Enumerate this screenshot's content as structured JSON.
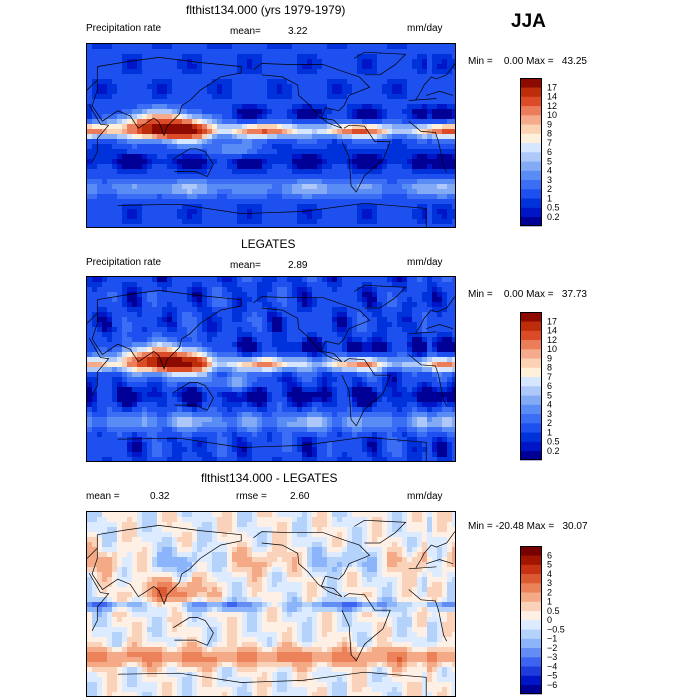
{
  "season": "JJA",
  "units": "mm/day",
  "panels": [
    {
      "title": "flthist134.000 (yrs 1979-1979)",
      "left_label": "Precipitation rate",
      "stat1_label": "mean=",
      "stat1_value": "3.22",
      "stat2_label": "",
      "stat2_value": "",
      "minmax": "Min =    0.00 Max =   43.25"
    },
    {
      "title": "LEGATES",
      "left_label": "Precipitation rate",
      "stat1_label": "mean=",
      "stat1_value": "2.89",
      "stat2_label": "",
      "stat2_value": "",
      "minmax": "Min =    0.00 Max =   37.73"
    },
    {
      "title": "flthist134.000 - LEGATES",
      "left_label": "",
      "stat1_label": "mean =",
      "stat1_value": "0.32",
      "stat2_label": "rmse =",
      "stat2_value": "2.60",
      "minmax": "Min = -20.48 Max =   30.07"
    }
  ],
  "chart_data": [
    {
      "type": "heatmap",
      "title": "flthist134.000 (yrs 1979-1979)",
      "variable": "Precipitation rate",
      "units": "mm/day",
      "mean": 3.22,
      "min": 0.0,
      "max": 43.25,
      "colorbar_levels": [
        "0.2",
        "0.5",
        "1",
        "2",
        "3",
        "4",
        "5",
        "6",
        "7",
        "8",
        "9",
        "10",
        "12",
        "14",
        "17"
      ],
      "colorbar_colors": [
        "#000096",
        "#0014c8",
        "#0032dc",
        "#1e50f0",
        "#3c6ef5",
        "#5a8cf5",
        "#82aaf5",
        "#afc8fa",
        "#d7e6ff",
        "#fff0dc",
        "#fcd2b4",
        "#f5aa8c",
        "#eb7d5a",
        "#dc4b28",
        "#be2d0a",
        "#8c0a00"
      ]
    },
    {
      "type": "heatmap",
      "title": "LEGATES",
      "variable": "Precipitation rate",
      "units": "mm/day",
      "mean": 2.89,
      "min": 0.0,
      "max": 37.73,
      "colorbar_levels": [
        "0.2",
        "0.5",
        "1",
        "2",
        "3",
        "4",
        "5",
        "6",
        "7",
        "8",
        "9",
        "10",
        "12",
        "14",
        "17"
      ],
      "colorbar_colors": [
        "#000096",
        "#0014c8",
        "#0032dc",
        "#1e50f0",
        "#3c6ef5",
        "#5a8cf5",
        "#82aaf5",
        "#afc8fa",
        "#d7e6ff",
        "#fff0dc",
        "#fcd2b4",
        "#f5aa8c",
        "#eb7d5a",
        "#dc4b28",
        "#be2d0a",
        "#8c0a00"
      ]
    },
    {
      "type": "heatmap",
      "title": "flthist134.000 - LEGATES",
      "units": "mm/day",
      "mean": 0.32,
      "rmse": 2.6,
      "min": -20.48,
      "max": 30.07,
      "colorbar_levels": [
        "−6",
        "−5",
        "−4",
        "−3",
        "−2",
        "−1",
        "−0.5",
        "0",
        "0.5",
        "1",
        "2",
        "3",
        "4",
        "5",
        "6"
      ],
      "colorbar_colors": [
        "#000096",
        "#0014c8",
        "#1e3cdc",
        "#3c64f0",
        "#648cf5",
        "#8cb4fa",
        "#b4d2fa",
        "#dcebff",
        "#fff0e6",
        "#fad2b9",
        "#f5aa87",
        "#eb825a",
        "#dc5a32",
        "#c83214",
        "#a01400",
        "#780000"
      ]
    }
  ]
}
